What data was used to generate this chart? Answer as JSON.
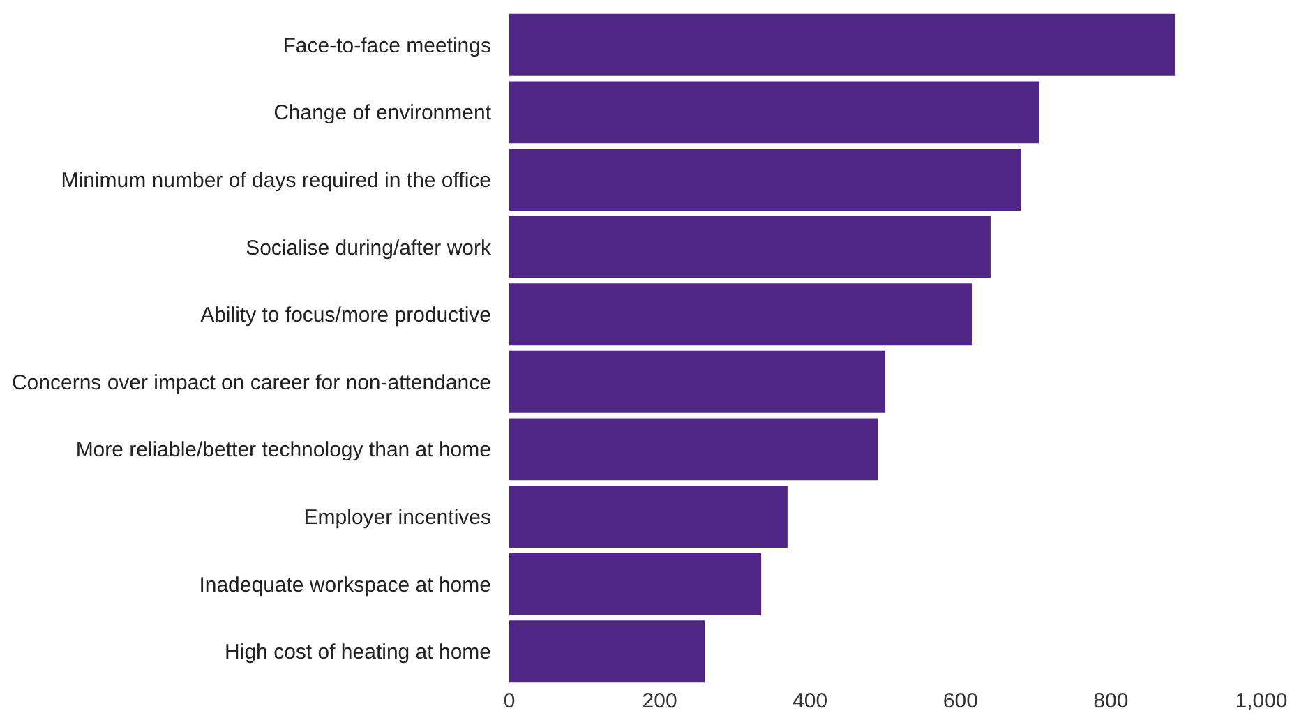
{
  "chart_data": {
    "type": "bar",
    "orientation": "horizontal",
    "categories": [
      "Face-to-face meetings",
      "Change of environment",
      "Minimum number of days required in the office",
      "Socialise during/after work",
      "Ability to focus/more productive",
      "Concerns over impact on career for non-attendance",
      "More reliable/better technology than at home",
      "Employer incentives",
      "Inadequate workspace at home",
      "High cost of heating at home"
    ],
    "values": [
      885,
      705,
      680,
      640,
      615,
      500,
      490,
      370,
      335,
      260
    ],
    "color": "#4f2683",
    "xlim": [
      0,
      1000
    ],
    "xticks": [
      0,
      200,
      400,
      600,
      800,
      {
        "value": 1000,
        "label": "1,000"
      }
    ]
  }
}
